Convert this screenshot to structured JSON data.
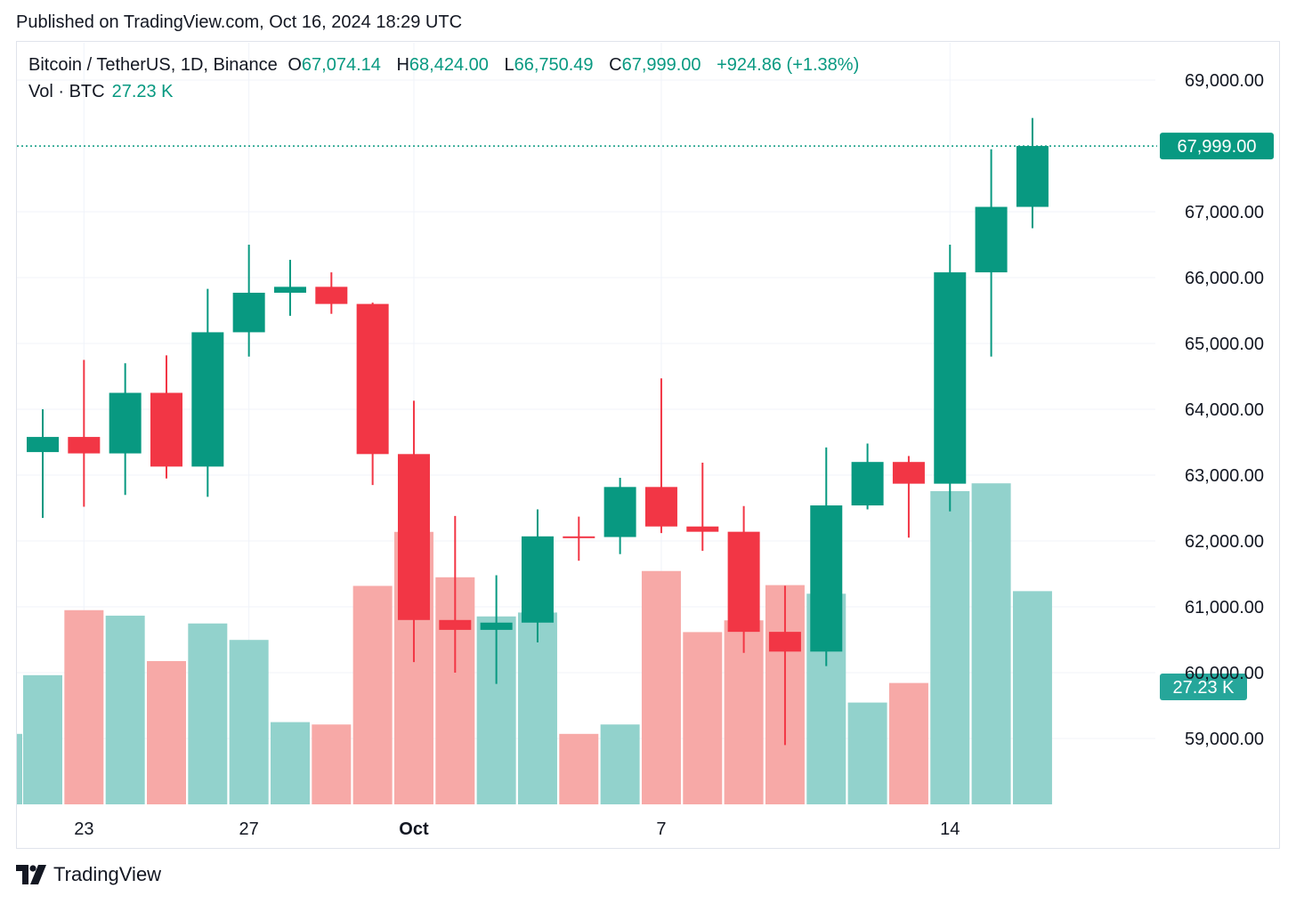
{
  "header": {
    "published": "Published on TradingView.com, Oct 16, 2024 18:29 UTC"
  },
  "legend": {
    "symbol": "Bitcoin / TetherUS, 1D, Binance",
    "o_label": "O",
    "o_value": "67,074.14",
    "h_label": "H",
    "h_value": "68,424.00",
    "l_label": "L",
    "l_value": "66,750.49",
    "c_label": "C",
    "c_value": "67,999.00",
    "change": "+924.86 (+1.38%)",
    "vol_label": "Vol · BTC",
    "vol_value": "27.23 K"
  },
  "colors": {
    "up": "#089981",
    "down": "#f23645",
    "up_volume": "#92d2cc",
    "down_volume": "#f7a9a7",
    "grid": "#f0f3fa"
  },
  "footer": {
    "brand": "TradingView",
    "logo_icon": "tradingview-logo-icon"
  },
  "chart_data": {
    "type": "candlestick",
    "ylim": [
      58000,
      69600
    ],
    "y_ticks": [
      "69,000.00",
      "67,000.00",
      "66,000.00",
      "65,000.00",
      "64,000.00",
      "63,000.00",
      "62,000.00",
      "61,000.00",
      "60,000.00",
      "59,000.00"
    ],
    "x_ticks": [
      {
        "index": 1,
        "label": "23"
      },
      {
        "index": 5,
        "label": "27"
      },
      {
        "index": 9,
        "label": "Oct",
        "bold": true
      },
      {
        "index": 15,
        "label": "7"
      },
      {
        "index": 22,
        "label": "14"
      }
    ],
    "last_price_label": "67,999.00",
    "last_price": 67999,
    "last_volume_label": "27.23 K",
    "volume_max": 30000,
    "candles": [
      {
        "date": "Sep 22",
        "o": 63350,
        "h": 64000,
        "l": 62350,
        "c": 63580,
        "v": 16500
      },
      {
        "date": "Sep 23",
        "o": 63580,
        "h": 64750,
        "l": 62520,
        "c": 63330,
        "v": 24800
      },
      {
        "date": "Sep 24",
        "o": 63330,
        "h": 64700,
        "l": 62700,
        "c": 64250,
        "v": 24100
      },
      {
        "date": "Sep 25",
        "o": 64250,
        "h": 64820,
        "l": 62950,
        "c": 63130,
        "v": 18300
      },
      {
        "date": "Sep 26",
        "o": 63130,
        "h": 65830,
        "l": 62670,
        "c": 65170,
        "v": 23100
      },
      {
        "date": "Sep 27",
        "o": 65170,
        "h": 66500,
        "l": 64800,
        "c": 65770,
        "v": 21000
      },
      {
        "date": "Sep 28",
        "o": 65770,
        "h": 66270,
        "l": 65420,
        "c": 65860,
        "v": 10500
      },
      {
        "date": "Sep 29",
        "o": 65860,
        "h": 66080,
        "l": 65450,
        "c": 65600,
        "v": 10200
      },
      {
        "date": "Sep 30",
        "o": 65600,
        "h": 65620,
        "l": 62850,
        "c": 63320,
        "v": 27900
      },
      {
        "date": "Oct 1",
        "o": 63320,
        "h": 64130,
        "l": 60160,
        "c": 60800,
        "v": 34800
      },
      {
        "date": "Oct 2",
        "o": 60800,
        "h": 62380,
        "l": 60000,
        "c": 60650,
        "v": 29000
      },
      {
        "date": "Oct 3",
        "o": 60650,
        "h": 61480,
        "l": 59830,
        "c": 60760,
        "v": 24000
      },
      {
        "date": "Oct 4",
        "o": 60760,
        "h": 62480,
        "l": 60460,
        "c": 62070,
        "v": 24500
      },
      {
        "date": "Oct 5",
        "o": 62070,
        "h": 62370,
        "l": 61700,
        "c": 62060,
        "v": 9000
      },
      {
        "date": "Oct 6",
        "o": 62060,
        "h": 62960,
        "l": 61800,
        "c": 62820,
        "v": 10200
      },
      {
        "date": "Oct 7",
        "o": 62820,
        "h": 64470,
        "l": 62120,
        "c": 62220,
        "v": 29800
      },
      {
        "date": "Oct 8",
        "o": 62220,
        "h": 63190,
        "l": 61850,
        "c": 62140,
        "v": 22000
      },
      {
        "date": "Oct 9",
        "o": 62140,
        "h": 62530,
        "l": 60300,
        "c": 60620,
        "v": 23500
      },
      {
        "date": "Oct 10",
        "o": 60620,
        "h": 61320,
        "l": 58900,
        "c": 60320,
        "v": 28000
      },
      {
        "date": "Oct 11",
        "o": 60320,
        "h": 63420,
        "l": 60100,
        "c": 62540,
        "v": 26900
      },
      {
        "date": "Oct 12",
        "o": 62540,
        "h": 63480,
        "l": 62480,
        "c": 63200,
        "v": 13000
      },
      {
        "date": "Oct 13",
        "o": 63200,
        "h": 63290,
        "l": 62050,
        "c": 62870,
        "v": 15500
      },
      {
        "date": "Oct 14",
        "o": 62870,
        "h": 66500,
        "l": 62450,
        "c": 66080,
        "v": 40000
      },
      {
        "date": "Oct 15",
        "o": 66080,
        "h": 67950,
        "l": 64800,
        "c": 67074.14,
        "v": 41000
      },
      {
        "date": "Oct 16",
        "o": 67074.14,
        "h": 68424,
        "l": 66750.49,
        "c": 67999,
        "v": 27230
      }
    ]
  }
}
